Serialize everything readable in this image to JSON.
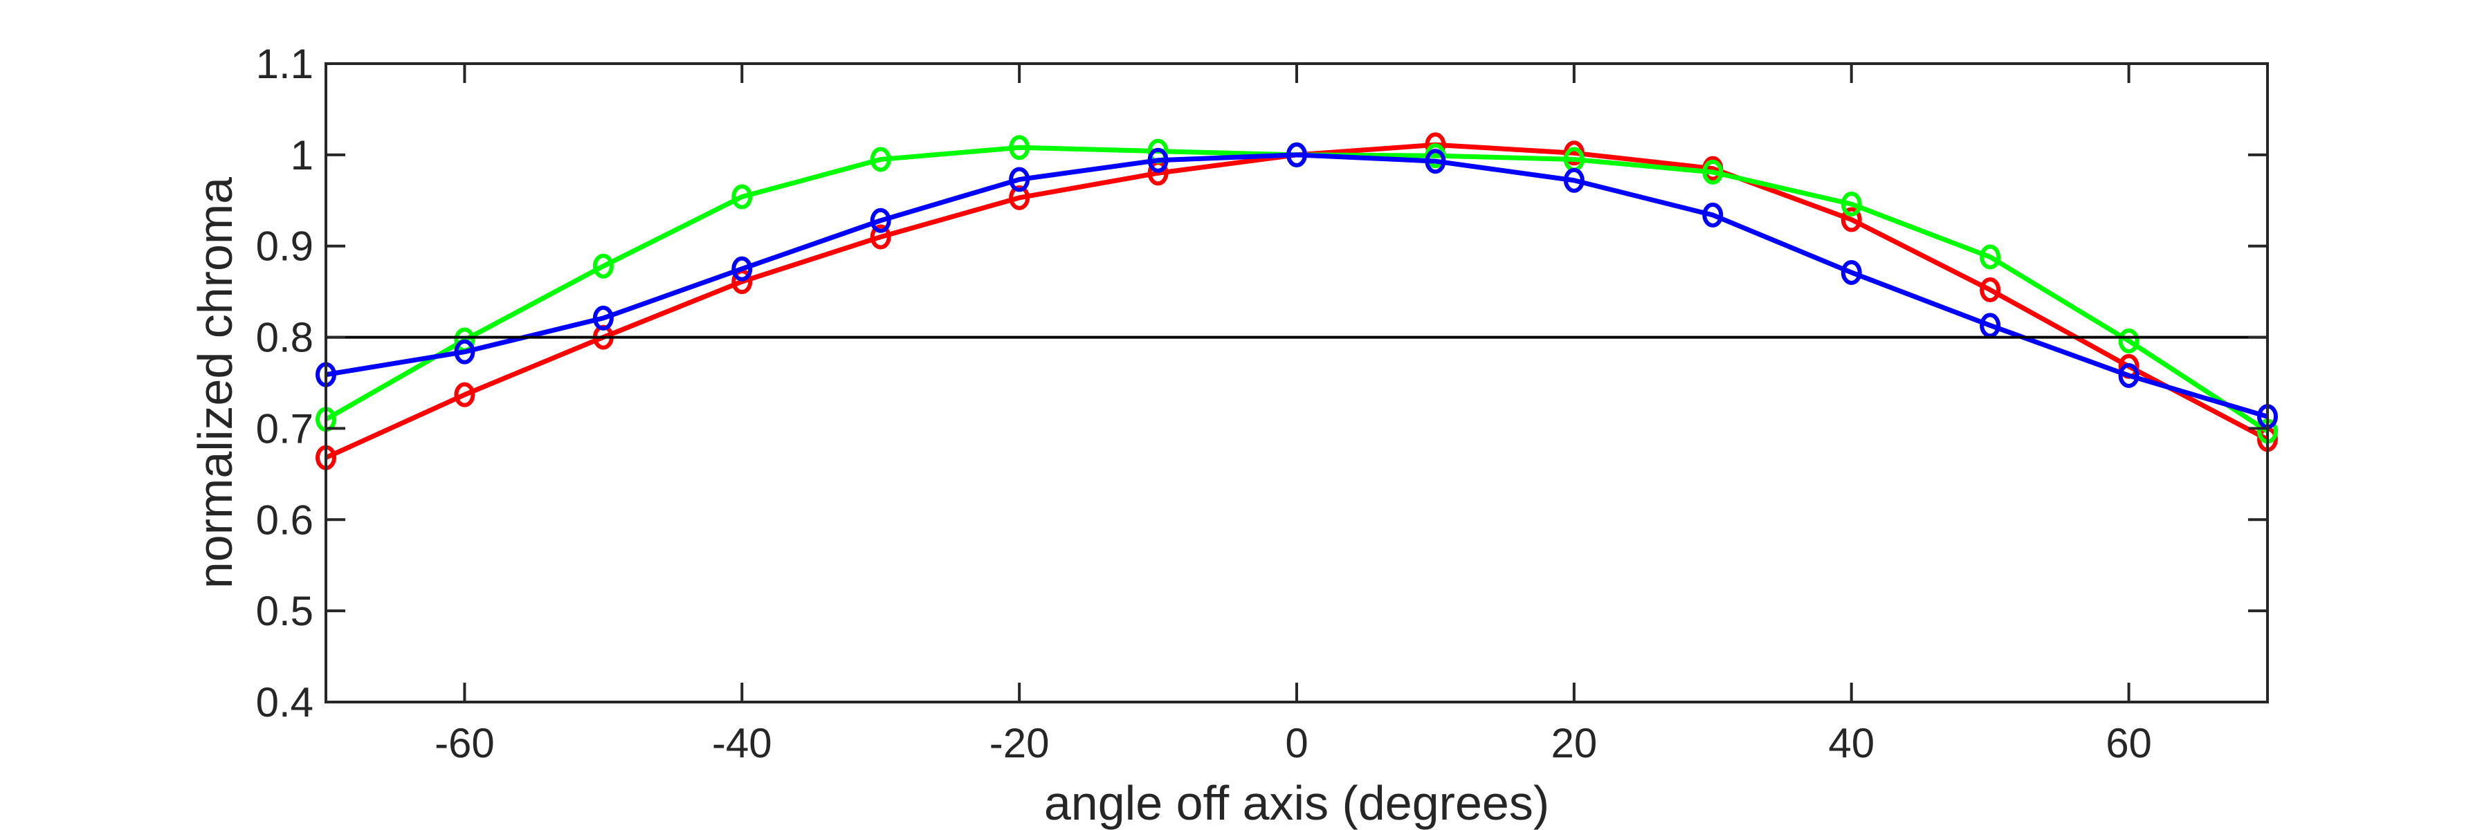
{
  "chart_data": {
    "type": "line",
    "title": "",
    "xlabel": "angle off axis (degrees)",
    "ylabel": "normalized chroma",
    "xlim": [
      -70,
      70
    ],
    "ylim": [
      0.4,
      1.1
    ],
    "xticks": [
      -60,
      -40,
      -20,
      0,
      20,
      40,
      60
    ],
    "yticks": [
      0.4,
      0.5,
      0.6,
      0.7,
      0.8,
      0.9,
      1,
      1.1
    ],
    "xtick_labels": [
      "-60",
      "-40",
      "-20",
      "0",
      "20",
      "40",
      "60"
    ],
    "ytick_labels": [
      "0.4",
      "0.5",
      "0.6",
      "0.7",
      "0.8",
      "0.9",
      "1",
      "1.1"
    ],
    "grid": false,
    "reference_line": 0.8,
    "marker": "circle",
    "x": [
      -70,
      -60,
      -50,
      -40,
      -30,
      -20,
      -10,
      0,
      10,
      20,
      30,
      40,
      50,
      60,
      70
    ],
    "series": [
      {
        "color": "#ff0000",
        "values": [
          0.668,
          0.737,
          0.8,
          0.861,
          0.91,
          0.953,
          0.98,
          1.0,
          1.011,
          1.002,
          0.985,
          0.929,
          0.852,
          0.768,
          0.688
        ]
      },
      {
        "color": "#00ff00",
        "values": [
          0.71,
          0.797,
          0.878,
          0.954,
          0.995,
          1.008,
          1.004,
          1.0,
          0.999,
          0.995,
          0.981,
          0.946,
          0.888,
          0.796,
          0.697
        ]
      },
      {
        "color": "#0000ff",
        "values": [
          0.759,
          0.784,
          0.821,
          0.875,
          0.928,
          0.973,
          0.994,
          1.0,
          0.993,
          0.972,
          0.934,
          0.871,
          0.813,
          0.758,
          0.713
        ]
      }
    ]
  }
}
